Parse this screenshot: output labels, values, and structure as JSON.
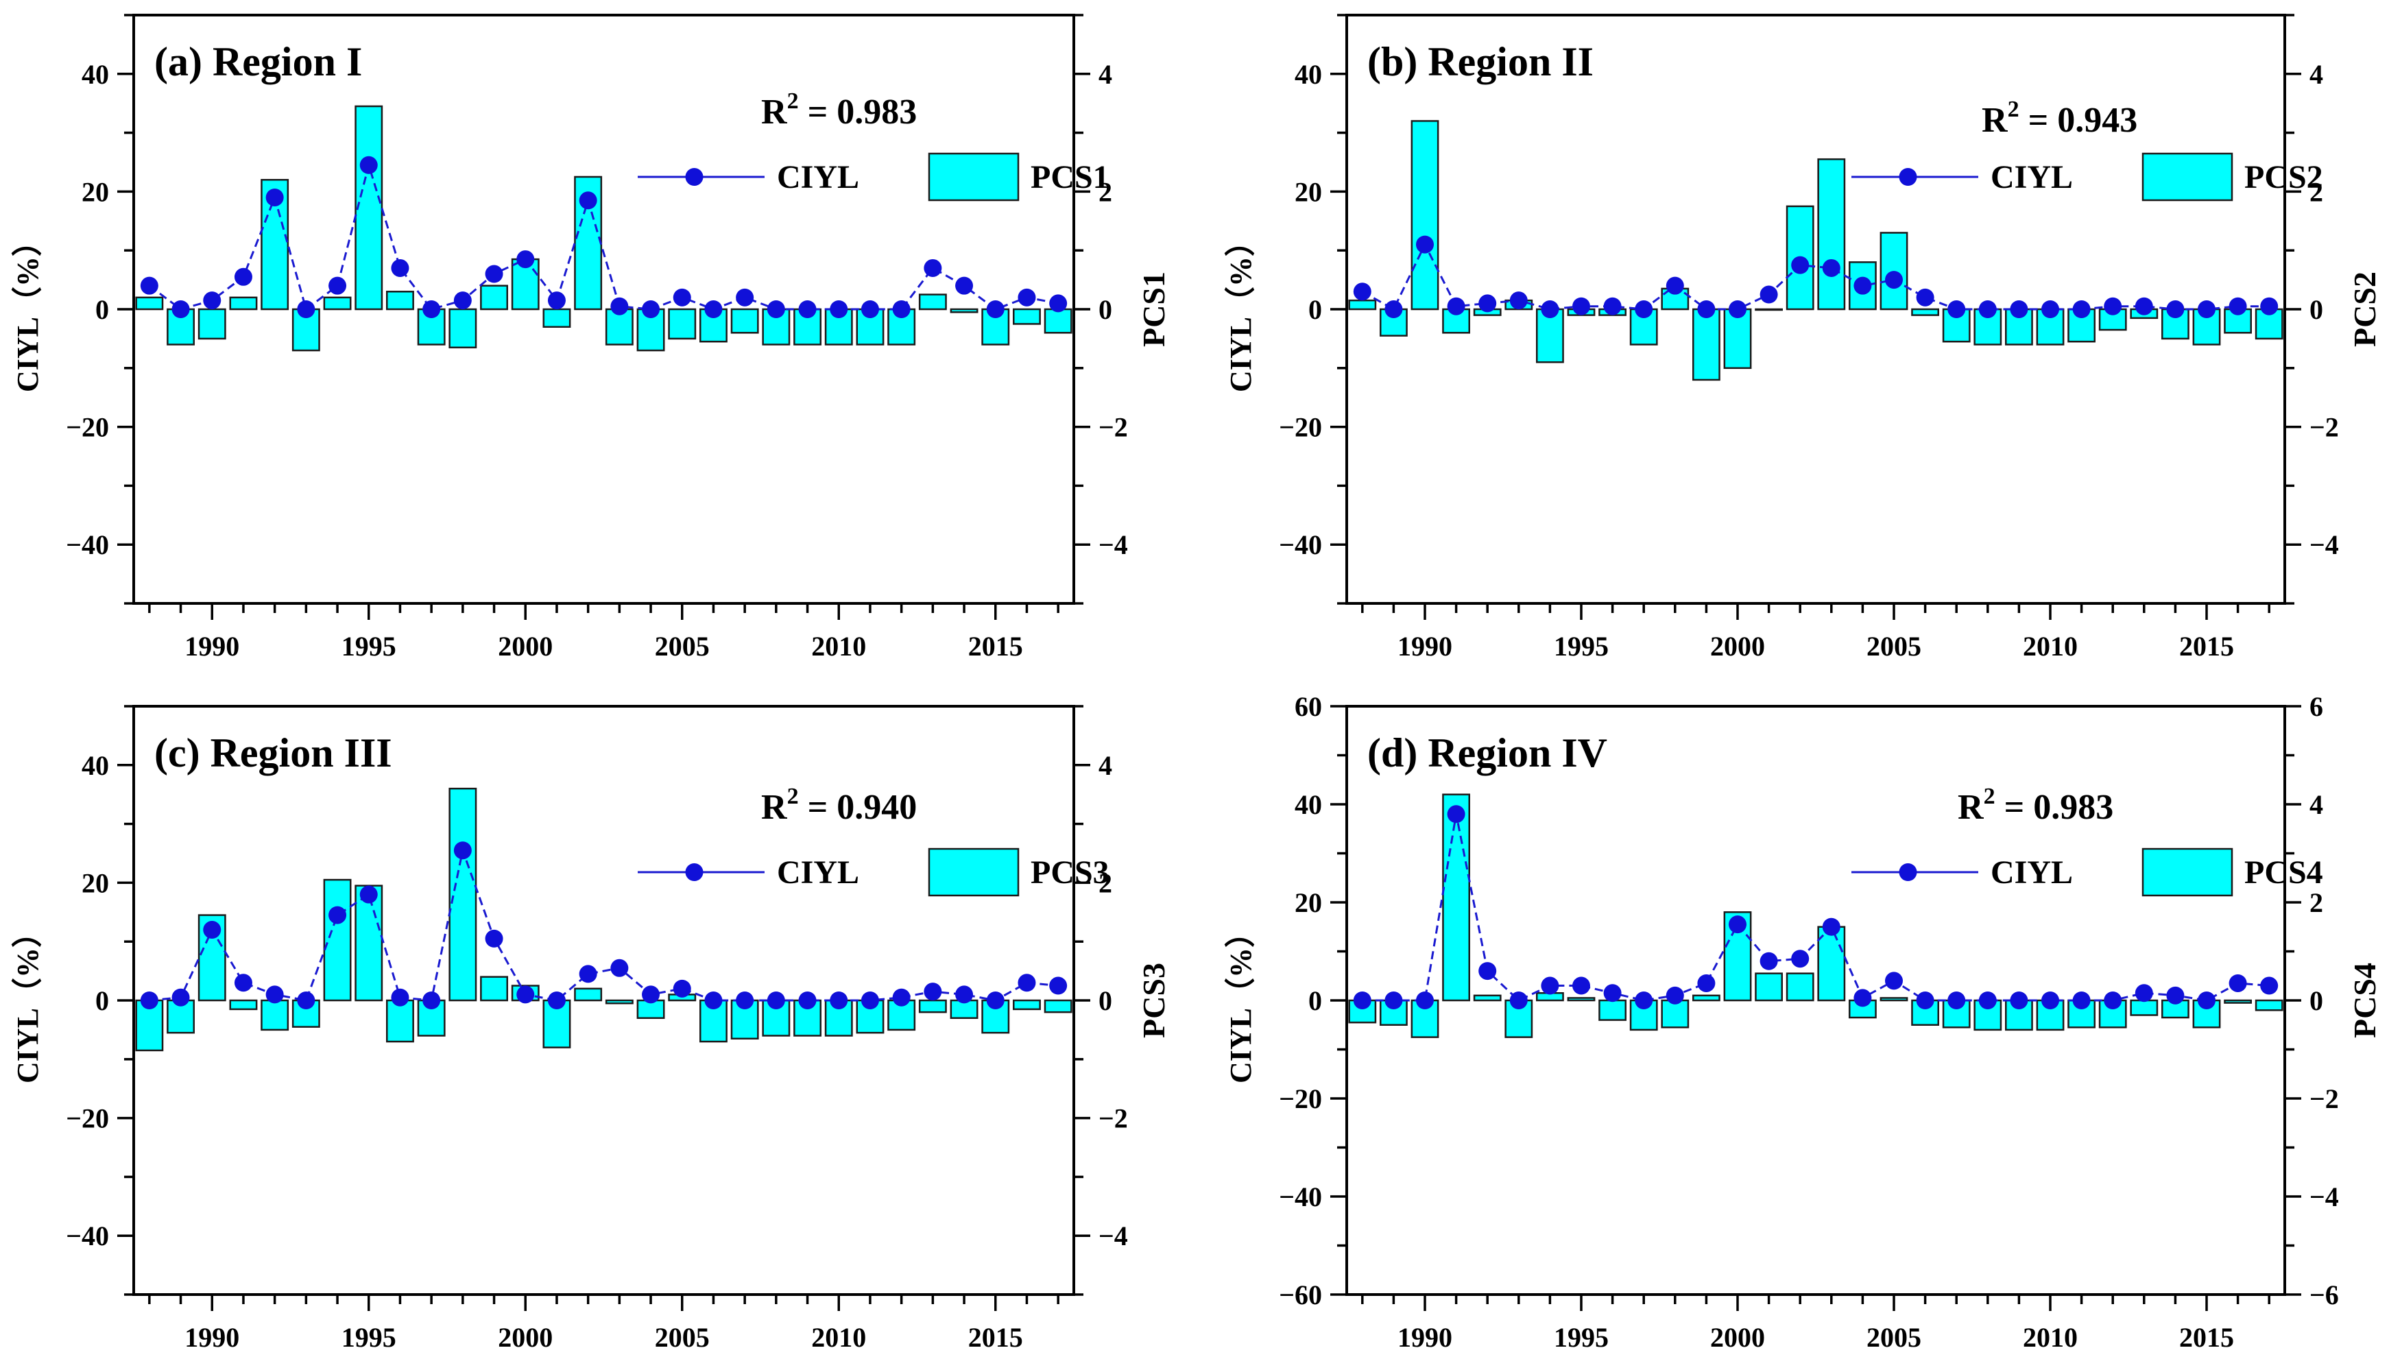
{
  "chart_data": [
    {
      "panel": "a",
      "type": "bar+line",
      "title": "(a) Region I",
      "r2_label": "R",
      "r2_sup": "2",
      "r2_value": " = 0.983",
      "xlabel": "",
      "ylabel_left": "CIYL（%）",
      "ylabel_right": "PCS1",
      "xlim": [
        1987.5,
        2017.5
      ],
      "ylim_left": [
        -50,
        50
      ],
      "ylim_right": [
        -5,
        5
      ],
      "left_ticks": [
        -40,
        -20,
        0,
        20,
        40
      ],
      "left_tick_labels": [
        "−40",
        "−20",
        "0",
        "20",
        "40"
      ],
      "right_ticks": [
        -4,
        -2,
        0,
        2,
        4
      ],
      "right_tick_labels": [
        "−4",
        "−2",
        "0",
        "2",
        "4"
      ],
      "x_ticks": [
        1990,
        1995,
        2000,
        2005,
        2010,
        2015
      ],
      "x_tick_labels": [
        "1990",
        "1995",
        "2000",
        "2005",
        "2010",
        "2015"
      ],
      "legend": {
        "line": "CIYL",
        "bar": "PCS1"
      },
      "years": [
        1988,
        1989,
        1990,
        1991,
        1992,
        1993,
        1994,
        1995,
        1996,
        1997,
        1998,
        1999,
        2000,
        2001,
        2002,
        2003,
        2004,
        2005,
        2006,
        2007,
        2008,
        2009,
        2010,
        2011,
        2012,
        2013,
        2014,
        2015,
        2016,
        2017
      ],
      "series": [
        {
          "name": "PCS1",
          "type": "bar",
          "axis": "right",
          "values": [
            0.2,
            -0.6,
            -0.5,
            0.2,
            2.2,
            -0.7,
            0.2,
            3.45,
            0.3,
            -0.6,
            -0.65,
            0.4,
            0.85,
            -0.3,
            2.25,
            -0.6,
            -0.7,
            -0.5,
            -0.55,
            -0.4,
            -0.6,
            -0.6,
            -0.6,
            -0.6,
            -0.6,
            0.25,
            -0.05,
            -0.6,
            -0.25,
            -0.4
          ]
        },
        {
          "name": "CIYL",
          "type": "line",
          "axis": "left",
          "values": [
            4,
            0,
            1.5,
            5.5,
            19,
            0,
            4,
            24.5,
            7,
            0,
            1.5,
            6,
            8.5,
            1.5,
            18.5,
            0.5,
            0,
            2,
            0,
            2,
            0,
            0,
            0,
            0,
            0,
            7,
            4,
            0,
            2,
            1
          ]
        }
      ]
    },
    {
      "panel": "b",
      "type": "bar+line",
      "title": "(b) Region II",
      "r2_label": "R",
      "r2_sup": "2",
      "r2_value": " = 0.943",
      "xlabel": "",
      "ylabel_left": "CIYL（%）",
      "ylabel_right": "PCS2",
      "xlim": [
        1987.5,
        2017.5
      ],
      "ylim_left": [
        -50,
        50
      ],
      "ylim_right": [
        -5,
        5
      ],
      "left_ticks": [
        -40,
        -20,
        0,
        20,
        40
      ],
      "left_tick_labels": [
        "−40",
        "−20",
        "0",
        "20",
        "40"
      ],
      "right_ticks": [
        -4,
        -2,
        0,
        2,
        4
      ],
      "right_tick_labels": [
        "−4",
        "−2",
        "0",
        "2",
        "4"
      ],
      "x_ticks": [
        1990,
        1995,
        2000,
        2005,
        2010,
        2015
      ],
      "x_tick_labels": [
        "1990",
        "1995",
        "2000",
        "2005",
        "2010",
        "2015"
      ],
      "legend": {
        "line": "CIYL",
        "bar": "PCS2"
      },
      "years": [
        1988,
        1989,
        1990,
        1991,
        1992,
        1993,
        1994,
        1995,
        1996,
        1997,
        1998,
        1999,
        2000,
        2001,
        2002,
        2003,
        2004,
        2005,
        2006,
        2007,
        2008,
        2009,
        2010,
        2011,
        2012,
        2013,
        2014,
        2015,
        2016,
        2017
      ],
      "series": [
        {
          "name": "PCS2",
          "type": "bar",
          "axis": "right",
          "values": [
            0.15,
            -0.45,
            3.2,
            -0.4,
            -0.1,
            0.15,
            -0.9,
            -0.1,
            -0.1,
            -0.6,
            0.35,
            -1.2,
            -1.0,
            0,
            1.75,
            2.55,
            0.8,
            1.3,
            -0.1,
            -0.55,
            -0.6,
            -0.6,
            -0.6,
            -0.55,
            -0.35,
            -0.15,
            -0.5,
            -0.6,
            -0.4,
            -0.5
          ]
        },
        {
          "name": "CIYL",
          "type": "line",
          "axis": "left",
          "values": [
            3,
            0,
            11,
            0.5,
            1,
            1.5,
            0,
            0.5,
            0.5,
            0,
            4,
            0,
            0,
            2.5,
            7.5,
            7,
            4,
            5,
            2,
            0,
            0,
            0,
            0,
            0,
            0.5,
            0.5,
            0,
            0,
            0.5,
            0.5
          ]
        }
      ]
    },
    {
      "panel": "c",
      "type": "bar+line",
      "title": "(c) Region III",
      "r2_label": "R",
      "r2_sup": "2",
      "r2_value": " = 0.940",
      "xlabel": "",
      "ylabel_left": "CIYL（%）",
      "ylabel_right": "PCS3",
      "xlim": [
        1987.5,
        2017.5
      ],
      "ylim_left": [
        -50,
        50
      ],
      "ylim_right": [
        -5,
        5
      ],
      "left_ticks": [
        -40,
        -20,
        0,
        20,
        40
      ],
      "left_tick_labels": [
        "−40",
        "−20",
        "0",
        "20",
        "40"
      ],
      "right_ticks": [
        -4,
        -2,
        0,
        2,
        4
      ],
      "right_tick_labels": [
        "−4",
        "−2",
        "0",
        "2",
        "4"
      ],
      "x_ticks": [
        1990,
        1995,
        2000,
        2005,
        2010,
        2015
      ],
      "x_tick_labels": [
        "1990",
        "1995",
        "2000",
        "2005",
        "2010",
        "2015"
      ],
      "legend": {
        "line": "CIYL",
        "bar": "PCS3"
      },
      "years": [
        1988,
        1989,
        1990,
        1991,
        1992,
        1993,
        1994,
        1995,
        1996,
        1997,
        1998,
        1999,
        2000,
        2001,
        2002,
        2003,
        2004,
        2005,
        2006,
        2007,
        2008,
        2009,
        2010,
        2011,
        2012,
        2013,
        2014,
        2015,
        2016,
        2017
      ],
      "series": [
        {
          "name": "PCS3",
          "type": "bar",
          "axis": "right",
          "values": [
            -0.85,
            -0.55,
            1.45,
            -0.15,
            -0.5,
            -0.45,
            2.05,
            1.95,
            -0.7,
            -0.6,
            3.6,
            0.4,
            0.25,
            -0.8,
            0.2,
            -0.05,
            -0.3,
            0.1,
            -0.7,
            -0.65,
            -0.6,
            -0.6,
            -0.6,
            -0.55,
            -0.5,
            -0.2,
            -0.3,
            -0.55,
            -0.15,
            -0.2
          ]
        },
        {
          "name": "CIYL",
          "type": "line",
          "axis": "left",
          "values": [
            0,
            0.5,
            12,
            3,
            1,
            0,
            14.5,
            18,
            0.5,
            0,
            25.5,
            10.5,
            1,
            0,
            4.5,
            5.5,
            1,
            2,
            0,
            0,
            0,
            0,
            0,
            0,
            0.5,
            1.5,
            1,
            0,
            3,
            2.5
          ]
        }
      ]
    },
    {
      "panel": "d",
      "type": "bar+line",
      "title": "(d) Region IV",
      "r2_label": "R",
      "r2_sup": "2",
      "r2_value": " = 0.983",
      "xlabel": "",
      "ylabel_left": "CIYL（%）",
      "ylabel_right": "PCS4",
      "xlim": [
        1987.5,
        2017.5
      ],
      "ylim_left": [
        -60,
        60
      ],
      "ylim_right": [
        -6,
        6
      ],
      "left_ticks": [
        -60,
        -40,
        -20,
        0,
        20,
        40,
        60
      ],
      "left_tick_labels": [
        "−60",
        "−40",
        "−20",
        "0",
        "20",
        "40",
        "60"
      ],
      "right_ticks": [
        -6,
        -4,
        -2,
        0,
        2,
        4,
        6
      ],
      "right_tick_labels": [
        "−6",
        "−4",
        "−2",
        "0",
        "2",
        "4",
        "6"
      ],
      "x_ticks": [
        1990,
        1995,
        2000,
        2005,
        2010,
        2015
      ],
      "x_tick_labels": [
        "1990",
        "1995",
        "2000",
        "2005",
        "2010",
        "2015"
      ],
      "legend": {
        "line": "CIYL",
        "bar": "PCS4"
      },
      "years": [
        1988,
        1989,
        1990,
        1991,
        1992,
        1993,
        1994,
        1995,
        1996,
        1997,
        1998,
        1999,
        2000,
        2001,
        2002,
        2003,
        2004,
        2005,
        2006,
        2007,
        2008,
        2009,
        2010,
        2011,
        2012,
        2013,
        2014,
        2015,
        2016,
        2017
      ],
      "series": [
        {
          "name": "PCS4",
          "type": "bar",
          "axis": "right",
          "values": [
            -0.45,
            -0.5,
            -0.75,
            4.2,
            0.1,
            -0.75,
            0.15,
            0.05,
            -0.4,
            -0.6,
            -0.55,
            0.1,
            1.8,
            0.55,
            0.55,
            1.5,
            -0.35,
            0.05,
            -0.5,
            -0.55,
            -0.6,
            -0.6,
            -0.6,
            -0.55,
            -0.55,
            -0.3,
            -0.35,
            -0.55,
            -0.05,
            -0.2
          ]
        },
        {
          "name": "CIYL",
          "type": "line",
          "axis": "left",
          "values": [
            0,
            0,
            0,
            38,
            6,
            0,
            3,
            3,
            1.5,
            0,
            1,
            3.5,
            15.5,
            8,
            8.5,
            15,
            0.5,
            4,
            0,
            0,
            0,
            0,
            0,
            0,
            0,
            1.5,
            1,
            0,
            3.5,
            3
          ]
        }
      ]
    }
  ],
  "style": {
    "bar_fill": "#00ffff",
    "bar_stroke": "#1a1a1a",
    "line_color": "#1a1ad0",
    "marker_color": "#1010d8",
    "axis_color": "#000000",
    "background": "#ffffff"
  }
}
